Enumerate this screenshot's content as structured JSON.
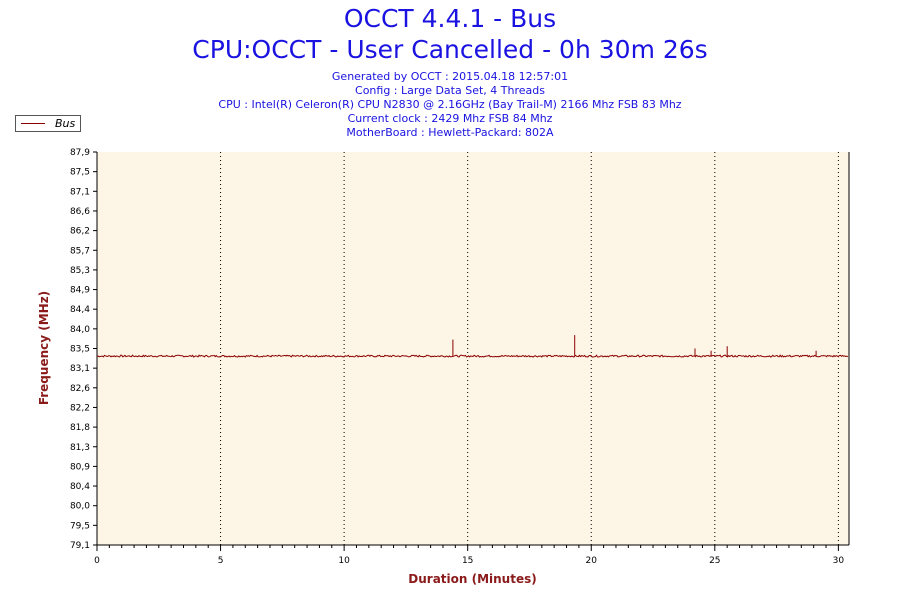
{
  "header": {
    "title": "OCCT 4.4.1 - Bus",
    "subtitle": "CPU:OCCT - User Cancelled - 0h 30m 26s",
    "info_lines": [
      "Generated by OCCT : 2015.04.18 12:57:01",
      "Config : Large Data Set, 4 Threads",
      "CPU : Intel(R) Celeron(R) CPU N2830 @ 2.16GHz (Bay Trail-M) 2166 Mhz FSB 83 Mhz",
      "Current clock : 2429 Mhz FSB 84 Mhz",
      "MotherBoard : Hewlett-Packard: 802A"
    ]
  },
  "colors": {
    "title": "#1a12e0",
    "series": "#8b0000",
    "plot_background": "#fdf5e6",
    "axis_label": "#8b1a1a"
  },
  "chart_data": {
    "type": "line",
    "title": "OCCT 4.4.1 - Bus",
    "xlabel": "Duration (Minutes)",
    "ylabel": "Frequency (MHz)",
    "xlim": [
      0,
      30.43
    ],
    "ylim": [
      79.1,
      87.9
    ],
    "x_ticks": [
      "0",
      "5",
      "10",
      "15",
      "20",
      "25",
      "30"
    ],
    "y_ticks": [
      "87,9",
      "87,5",
      "87,1",
      "86,6",
      "86,2",
      "85,7",
      "85,3",
      "84,9",
      "84,4",
      "84,0",
      "83,5",
      "83,1",
      "82,6",
      "82,2",
      "81,8",
      "81,3",
      "80,9",
      "80,4",
      "80,0",
      "79,5",
      "79,1"
    ],
    "grid_x": true,
    "grid_y": false,
    "legend_position": "top-left",
    "series": [
      {
        "name": "Bus",
        "baseline": 83.33,
        "spikes": [
          {
            "x": 14.4,
            "y": 83.7
          },
          {
            "x": 19.33,
            "y": 83.8
          },
          {
            "x": 24.2,
            "y": 83.5
          },
          {
            "x": 24.85,
            "y": 83.45
          },
          {
            "x": 25.5,
            "y": 83.55
          },
          {
            "x": 29.1,
            "y": 83.45
          }
        ]
      }
    ]
  }
}
